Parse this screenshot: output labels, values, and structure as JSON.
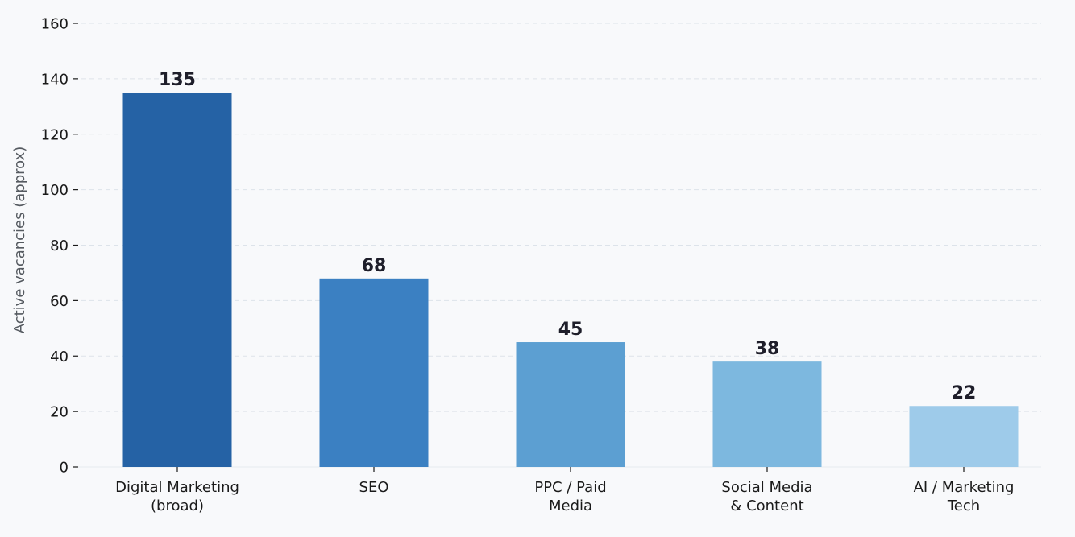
{
  "chart_data": {
    "type": "bar",
    "title": "",
    "xlabel": "",
    "ylabel": "Active vacancies (approx)",
    "ylim": [
      0,
      160
    ],
    "yticks": [
      0,
      20,
      40,
      60,
      80,
      100,
      120,
      140,
      160
    ],
    "grid": "horizontal-dashed",
    "categories": [
      [
        "Digital Marketing",
        "(broad)"
      ],
      [
        "SEO"
      ],
      [
        "PPC / Paid",
        "Media"
      ],
      [
        "Social Media",
        "& Content"
      ],
      [
        "AI / Marketing",
        "Tech"
      ]
    ],
    "values": [
      135,
      68,
      45,
      38,
      22
    ],
    "value_labels": [
      "135",
      "68",
      "45",
      "38",
      "22"
    ],
    "colors": [
      "#2562a5",
      "#3b80c2",
      "#5c9fd2",
      "#7db8df",
      "#9ecbea"
    ]
  }
}
